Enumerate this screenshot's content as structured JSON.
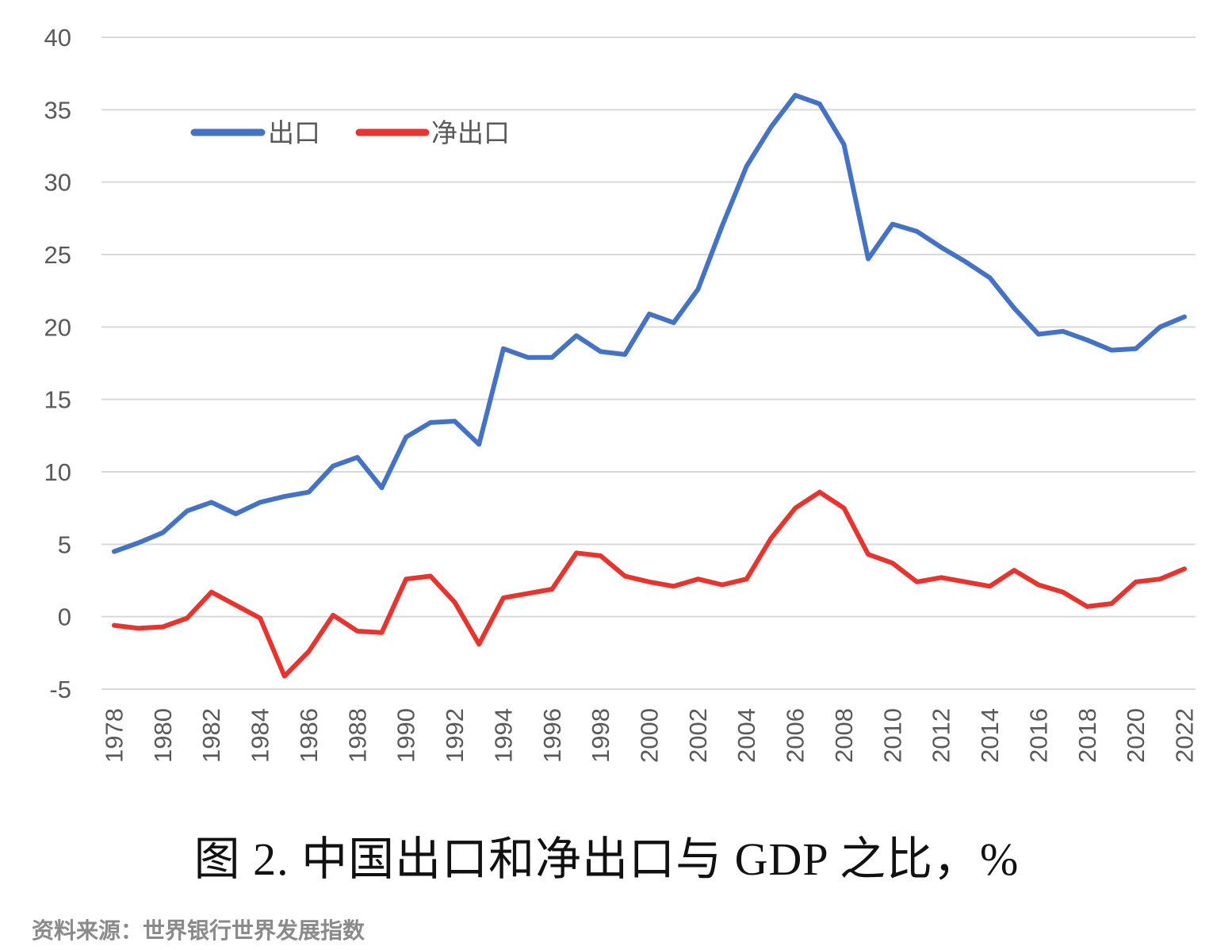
{
  "caption": "图 2.  中国出口和净出口与 GDP 之比，%",
  "source": "资料来源：世界银行世界发展指数",
  "chart_data": {
    "type": "line",
    "title": "",
    "xlabel": "",
    "ylabel": "",
    "ylim": [
      -5,
      40
    ],
    "yticks": [
      -5,
      0,
      5,
      10,
      15,
      20,
      25,
      30,
      35,
      40
    ],
    "x": [
      1978,
      1979,
      1980,
      1981,
      1982,
      1983,
      1984,
      1985,
      1986,
      1987,
      1988,
      1989,
      1990,
      1991,
      1992,
      1993,
      1994,
      1995,
      1996,
      1997,
      1998,
      1999,
      2000,
      2001,
      2002,
      2003,
      2004,
      2005,
      2006,
      2007,
      2008,
      2009,
      2010,
      2011,
      2012,
      2013,
      2014,
      2015,
      2016,
      2017,
      2018,
      2019,
      2020,
      2021,
      2022
    ],
    "xtick_labels": [
      "1978",
      "1980",
      "1982",
      "1984",
      "1986",
      "1988",
      "1990",
      "1992",
      "1994",
      "1996",
      "1998",
      "2000",
      "2002",
      "2004",
      "2006",
      "2008",
      "2010",
      "2012",
      "2014",
      "2016",
      "2018",
      "2020",
      "2022"
    ],
    "grid": true,
    "legend_position": "top-left",
    "series": [
      {
        "name": "出口",
        "color": "#4472C4",
        "values": [
          4.5,
          5.1,
          5.8,
          7.3,
          7.9,
          7.1,
          7.9,
          8.3,
          8.6,
          10.4,
          11.0,
          8.9,
          12.4,
          13.4,
          13.5,
          11.9,
          18.5,
          17.9,
          17.9,
          19.4,
          18.3,
          18.1,
          20.9,
          20.3,
          22.6,
          27.0,
          31.1,
          33.8,
          36.0,
          35.4,
          32.6,
          24.7,
          27.1,
          26.6,
          25.5,
          24.5,
          23.4,
          21.3,
          19.5,
          19.7,
          19.1,
          18.4,
          18.5,
          20.0,
          20.7
        ]
      },
      {
        "name": "净出口",
        "color": "#E8342E",
        "values": [
          -0.6,
          -0.8,
          -0.7,
          -0.1,
          1.7,
          0.8,
          -0.1,
          -4.1,
          -2.4,
          0.1,
          -1.0,
          -1.1,
          2.6,
          2.8,
          1.0,
          -1.9,
          1.3,
          1.6,
          1.9,
          4.4,
          4.2,
          2.8,
          2.4,
          2.1,
          2.6,
          2.2,
          2.6,
          5.4,
          7.5,
          8.6,
          7.5,
          4.3,
          3.7,
          2.4,
          2.7,
          2.4,
          2.1,
          3.2,
          2.2,
          1.7,
          0.7,
          0.9,
          2.4,
          2.6,
          3.3
        ]
      }
    ]
  }
}
